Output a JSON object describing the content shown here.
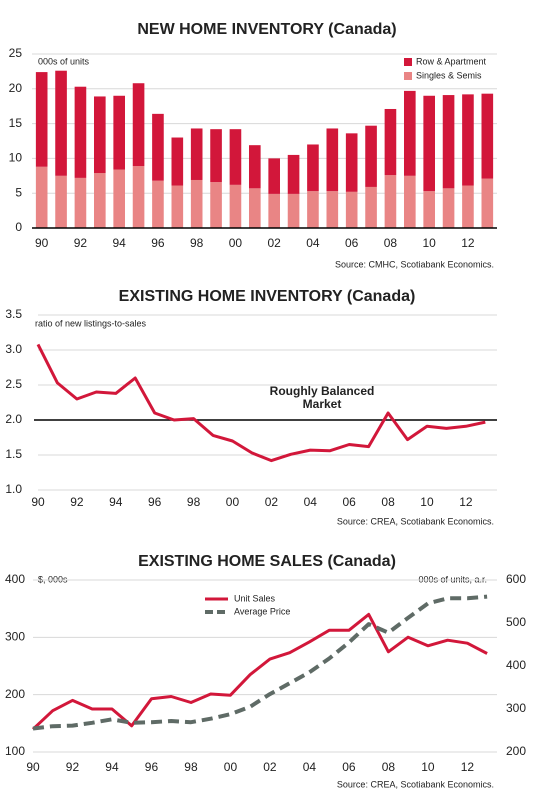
{
  "chart_data": [
    {
      "type": "bar",
      "stacked": true,
      "title": "NEW HOME INVENTORY (Canada)",
      "subtitle": "000s of units",
      "source": "Source: CMHC, Scotiabank Economics.",
      "categories": [
        "90",
        null,
        "92",
        null,
        "94",
        null,
        "96",
        null,
        "98",
        null,
        "00",
        null,
        "02",
        null,
        "04",
        null,
        "06",
        null,
        "08",
        null,
        "10",
        null,
        "12",
        null
      ],
      "series": [
        {
          "name": "Row & Apartment",
          "color": "#d2173a",
          "values": [
            13.6,
            15.1,
            13.1,
            11.0,
            10.6,
            11.9,
            9.6,
            6.9,
            7.4,
            7.6,
            8.0,
            6.2,
            5.1,
            5.6,
            6.7,
            9.0,
            8.4,
            8.8,
            9.5,
            12.2,
            13.7,
            13.4,
            13.1,
            12.2
          ]
        },
        {
          "name": "Singles & Semis",
          "color": "#e98585",
          "values": [
            8.8,
            7.5,
            7.2,
            7.9,
            8.4,
            8.9,
            6.8,
            6.1,
            6.9,
            6.6,
            6.2,
            5.7,
            4.9,
            4.9,
            5.3,
            5.3,
            5.2,
            5.9,
            7.6,
            7.5,
            5.3,
            5.7,
            6.1,
            7.1
          ]
        }
      ],
      "ylim": [
        0,
        25
      ],
      "yticks": [
        0,
        5,
        10,
        15,
        20,
        25
      ],
      "grid": true,
      "legend": "top-right"
    },
    {
      "type": "line",
      "title": "EXISTING HOME INVENTORY (Canada)",
      "subtitle": "ratio of new listings-to-sales",
      "source": "Source: CREA, Scotiabank Economics.",
      "annotation": [
        "Roughly Balanced",
        "Market"
      ],
      "reference_line": 2,
      "x": [
        1990,
        1991,
        1992,
        1993,
        1994,
        1995,
        1996,
        1997,
        1998,
        1999,
        2000,
        2001,
        2002,
        2003,
        2004,
        2005,
        2006,
        2007,
        2008,
        2009,
        2010,
        2011,
        2012,
        2013
      ],
      "series": [
        {
          "name": null,
          "color": "#d2173a",
          "values": [
            3.08,
            2.53,
            2.3,
            2.4,
            2.38,
            2.6,
            2.1,
            2.0,
            2.02,
            1.78,
            1.7,
            1.53,
            1.42,
            1.51,
            1.57,
            1.56,
            1.65,
            1.62,
            2.1,
            1.72,
            1.91,
            1.88,
            1.91,
            1.97
          ]
        }
      ],
      "xlim": [
        1990,
        2013.6
      ],
      "xticks": [
        {
          "value": 1990,
          "label": "90"
        },
        {
          "value": 1992,
          "label": "92"
        },
        {
          "value": 1994,
          "label": "94"
        },
        {
          "value": 1996,
          "label": "96"
        },
        {
          "value": 1998,
          "label": "98"
        },
        {
          "value": 2000,
          "label": "00"
        },
        {
          "value": 2002,
          "label": "02"
        },
        {
          "value": 2004,
          "label": "04"
        },
        {
          "value": 2006,
          "label": "06"
        },
        {
          "value": 2008,
          "label": "08"
        },
        {
          "value": 2010,
          "label": "10"
        },
        {
          "value": 2012,
          "label": "12"
        }
      ],
      "ylim": [
        1,
        3.5
      ],
      "yticks": [
        {
          "value": 1,
          "label": "1.0"
        },
        1.5,
        {
          "value": 2,
          "label": "2.0"
        },
        2.5,
        {
          "value": 3,
          "label": "3.0"
        },
        3.5
      ],
      "grid": true
    },
    {
      "type": "line",
      "title": "EXISTING HOME SALES (Canada)",
      "subtitle": "$, 000s",
      "subtitle2": "000s of units, a.r.",
      "source": "Source: CREA, Scotiabank Economics.",
      "x": [
        1990,
        1991,
        1992,
        1993,
        1994,
        1995,
        1996,
        1997,
        1998,
        1999,
        2000,
        2001,
        2002,
        2003,
        2004,
        2005,
        2006,
        2007,
        2008,
        2009,
        2010,
        2011,
        2012,
        2013
      ],
      "series": [
        {
          "name": "Unit Sales",
          "color": "#d2173a",
          "axis": "y2",
          "dashed": false,
          "values": [
            253,
            296,
            320,
            300,
            300,
            261,
            324,
            329,
            315,
            335,
            332,
            380,
            416,
            431,
            456,
            483,
            483,
            520,
            433,
            467,
            447,
            460,
            453,
            429
          ]
        },
        {
          "name": "Average Price",
          "color": "#5f6b66",
          "dashed": true,
          "values": [
            141,
            145,
            146,
            151,
            157,
            151,
            152,
            154,
            152,
            158,
            166,
            179,
            201,
            220,
            239,
            263,
            291,
            323,
            308,
            334,
            359,
            368,
            368,
            371
          ]
        }
      ],
      "xlim": [
        1990,
        2013.5
      ],
      "xticks": [
        {
          "value": 1990,
          "label": "90"
        },
        {
          "value": 1992,
          "label": "92"
        },
        {
          "value": 1994,
          "label": "94"
        },
        {
          "value": 1996,
          "label": "96"
        },
        {
          "value": 1998,
          "label": "98"
        },
        {
          "value": 2000,
          "label": "00"
        },
        {
          "value": 2002,
          "label": "02"
        },
        {
          "value": 2004,
          "label": "04"
        },
        {
          "value": 2006,
          "label": "06"
        },
        {
          "value": 2008,
          "label": "08"
        },
        {
          "value": 2010,
          "label": "10"
        },
        {
          "value": 2012,
          "label": "12"
        }
      ],
      "ylim": [
        100,
        400
      ],
      "yticks": [
        100,
        200,
        300,
        400
      ],
      "y2lim": [
        200,
        600
      ],
      "y2ticks": [
        200,
        300,
        400,
        500,
        600
      ],
      "grid": true,
      "legend": "top-center"
    }
  ]
}
